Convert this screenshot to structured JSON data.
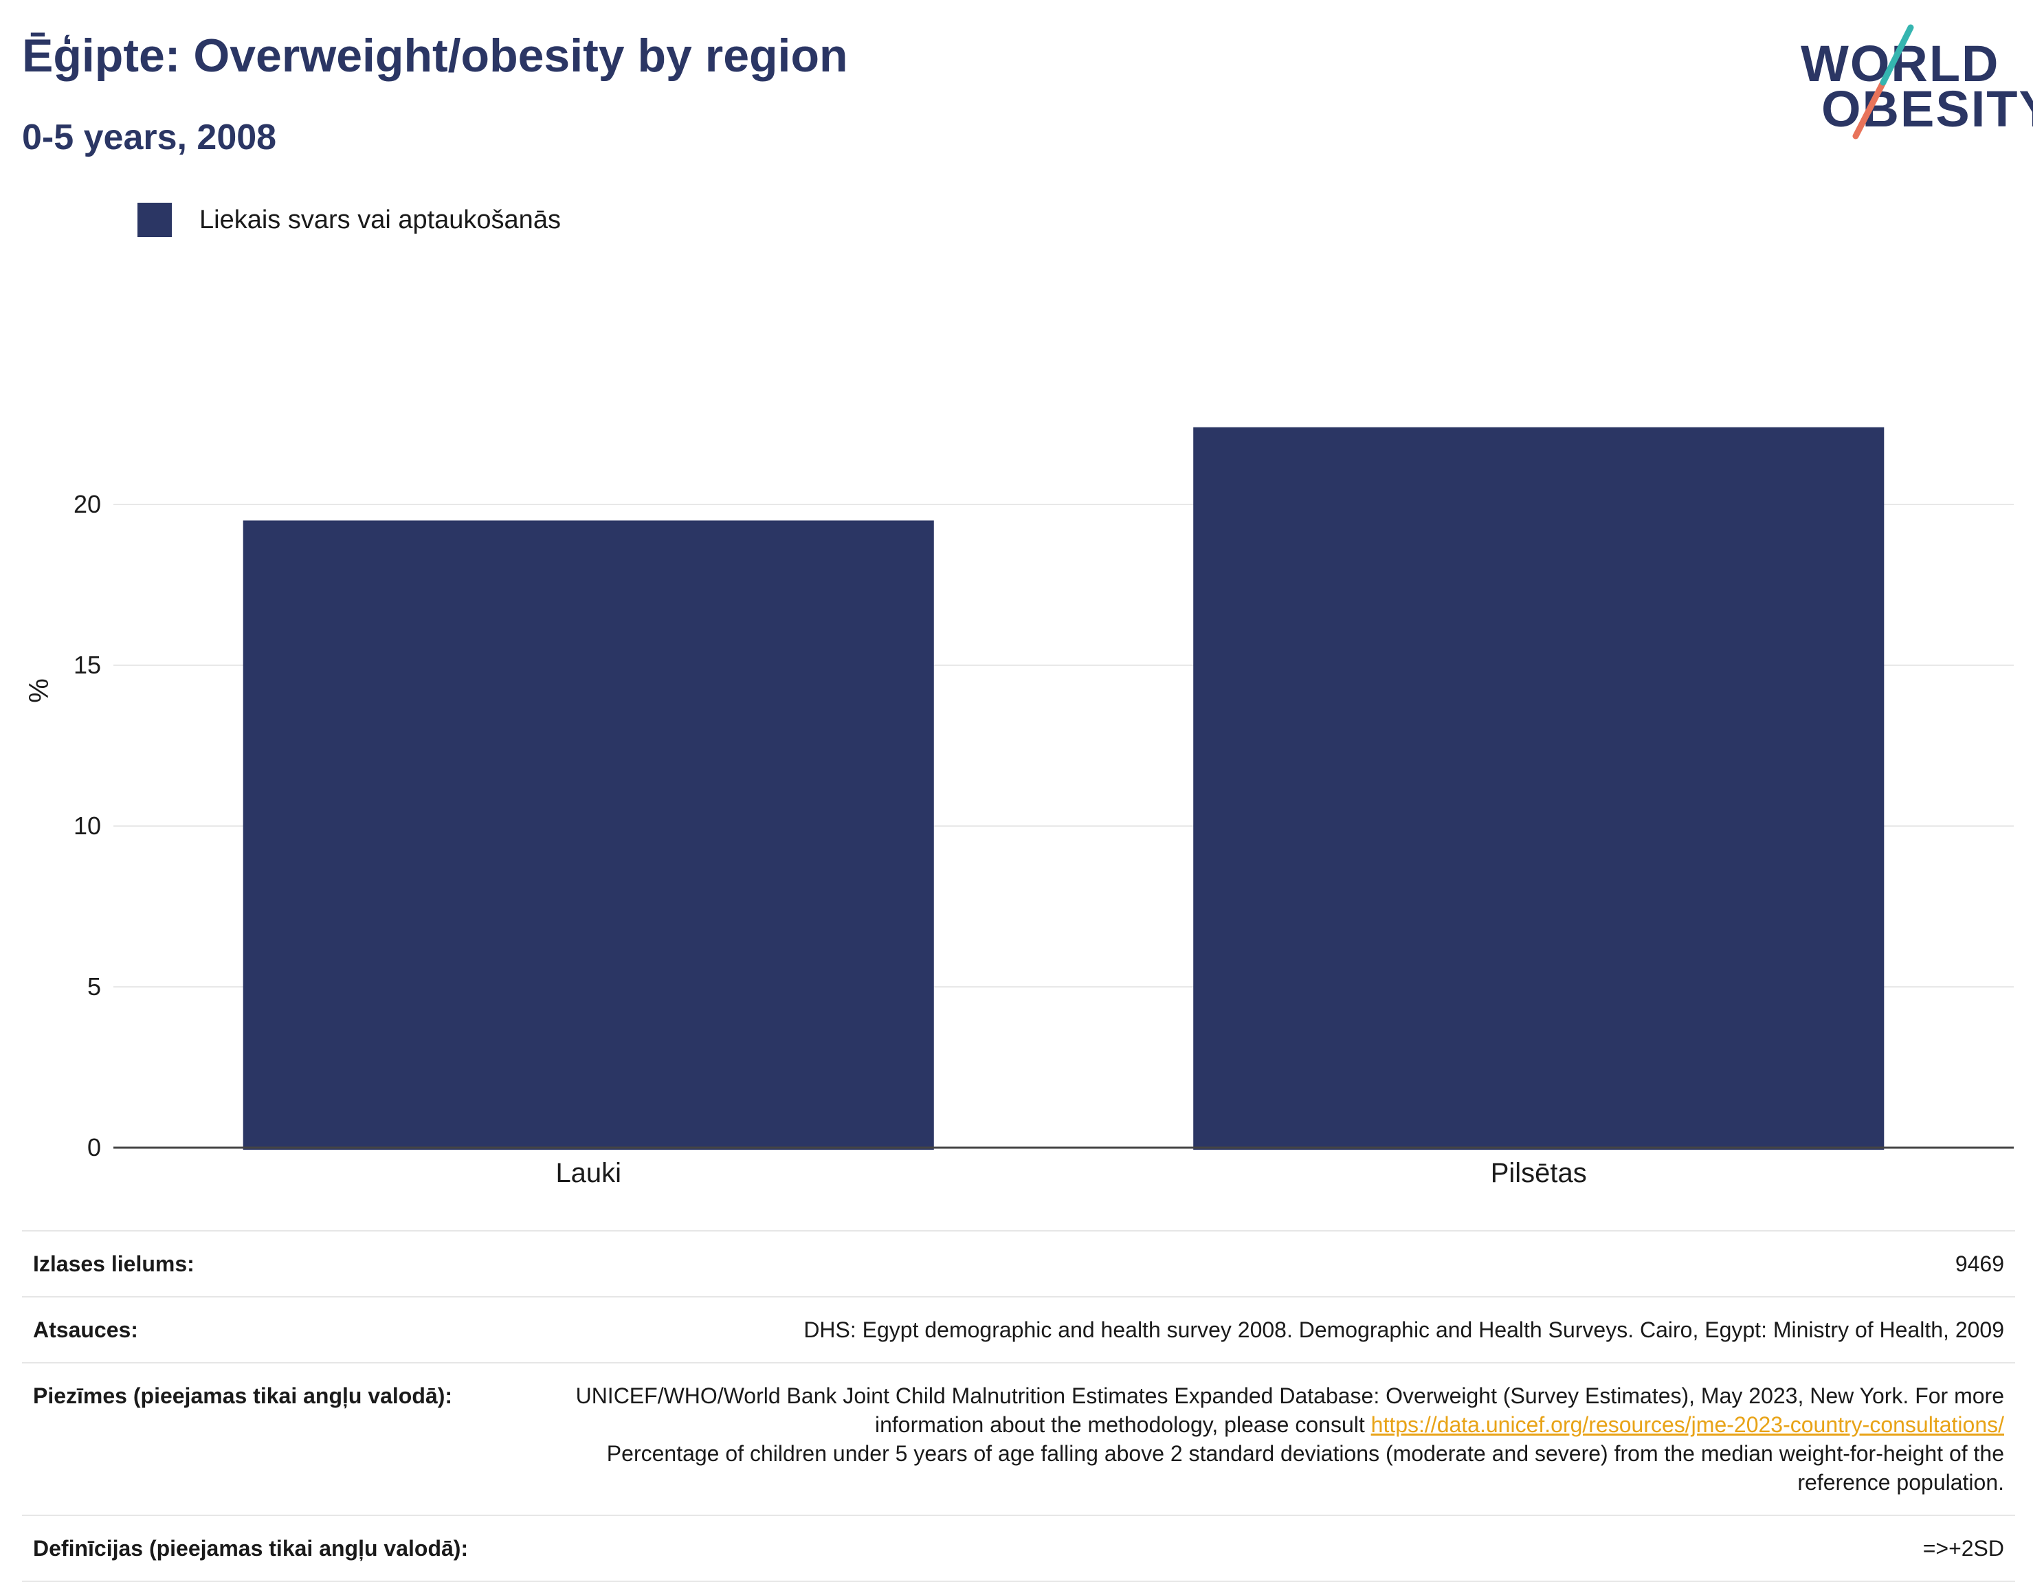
{
  "header": {
    "title": "Ēģipte: Overweight/obesity by region",
    "subtitle": "0-5 years, 2008"
  },
  "logo": {
    "line1": "WORLD",
    "line2": "OBESITY",
    "icon": "world-obesity-logo",
    "colors": {
      "text": "#2b3664",
      "slash_top": "#35b5b0",
      "slash_bottom": "#e8735a"
    }
  },
  "legend": {
    "items": [
      {
        "label": "Liekais svars vai aptaukošanās",
        "color": "#2b3664"
      }
    ]
  },
  "chart_data": {
    "type": "bar",
    "categories": [
      "Lauki",
      "Pilsētas"
    ],
    "series": [
      {
        "name": "Liekais svars vai aptaukošanās",
        "values": [
          19.5,
          22.4
        ],
        "color": "#2b3664"
      }
    ],
    "ylabel": "%",
    "xlabel": "",
    "ylim": [
      0,
      25
    ],
    "yticks": [
      0,
      5,
      10,
      15,
      20
    ],
    "grid": true,
    "legend_position": "top-left"
  },
  "info": {
    "sample_size": {
      "label": "Izlases lielums:",
      "value": "9469"
    },
    "references": {
      "label": "Atsauces:",
      "value": "DHS: Egypt demographic and health survey 2008. Demographic and Health Surveys. Cairo, Egypt: Ministry of Health, 2009"
    },
    "notes": {
      "label": "Piezīmes (pieejamas tikai angļu valodā):",
      "text_before": "UNICEF/WHO/World Bank Joint Child Malnutrition Estimates Expanded Database: Overweight (Survey Estimates), May 2023, New York. For more information about the methodology, please consult",
      "link": "https://data.unicef.org/resources/jme-2023-country-consultations/",
      "text_after": "Percentage of children under 5 years of age falling above 2 standard deviations (moderate and severe) from the median weight-for-height of the reference population."
    },
    "definitions": {
      "label": "Definīcijas (pieejamas tikai angļu valodā):",
      "value": "=>+2SD"
    }
  }
}
